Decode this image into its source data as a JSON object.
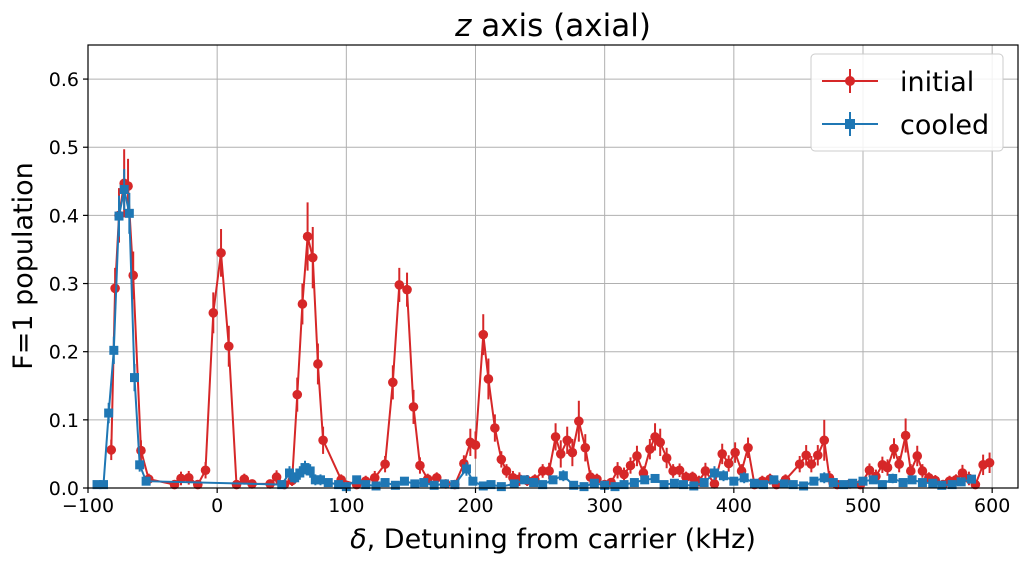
{
  "chart_data": {
    "type": "line",
    "title_italic": "z",
    "title_rest": " axis (axial)",
    "xlabel_symbol": "δ",
    "xlabel_rest": ", Detuning from carrier (kHz)",
    "ylabel": "F=1 population",
    "xlim": [
      -100,
      620
    ],
    "ylim": [
      0,
      0.65
    ],
    "xticks": [
      -100,
      0,
      100,
      200,
      300,
      400,
      500,
      600
    ],
    "xtick_labels": [
      "−100",
      "0",
      "100",
      "200",
      "300",
      "400",
      "500",
      "600"
    ],
    "yticks": [
      0,
      0.1,
      0.2,
      0.3,
      0.4,
      0.5,
      0.6
    ],
    "ytick_labels": [
      "0.0",
      "0.1",
      "0.2",
      "0.3",
      "0.4",
      "0.5",
      "0.6"
    ],
    "grid": true,
    "legend_position": "top-right",
    "series": [
      {
        "name": "initial",
        "color": "#d62728",
        "marker": "circle",
        "points": [
          [
            -82,
            0.056,
            0.015
          ],
          [
            -79,
            0.293,
            0.03
          ],
          [
            -76,
            0.4,
            0.04
          ],
          [
            -72,
            0.447,
            0.05
          ],
          [
            -69,
            0.443,
            0.04
          ],
          [
            -65,
            0.312,
            0.035
          ],
          [
            -59,
            0.055,
            0.015
          ],
          [
            -53,
            0.013,
            0.008
          ],
          [
            -33,
            0.005,
            0.005
          ],
          [
            -28,
            0.014,
            0.01
          ],
          [
            -22,
            0.015,
            0.01
          ],
          [
            -15,
            0.005,
            0.005
          ],
          [
            -9,
            0.026,
            0.012
          ],
          [
            -3,
            0.257,
            0.03
          ],
          [
            3,
            0.345,
            0.035
          ],
          [
            9,
            0.208,
            0.03
          ],
          [
            15,
            0.005,
            0.005
          ],
          [
            21,
            0.013,
            0.008
          ],
          [
            27,
            0.006,
            0.005
          ],
          [
            41,
            0.006,
            0.005
          ],
          [
            46,
            0.016,
            0.01
          ],
          [
            52,
            0.005,
            0.006
          ],
          [
            58,
            0.011,
            0.008
          ],
          [
            62,
            0.137,
            0.025
          ],
          [
            66,
            0.27,
            0.03
          ],
          [
            70,
            0.369,
            0.05
          ],
          [
            74,
            0.338,
            0.045
          ],
          [
            78,
            0.182,
            0.03
          ],
          [
            82,
            0.07,
            0.02
          ],
          [
            96,
            0.012,
            0.008
          ],
          [
            108,
            0.005,
            0.005
          ],
          [
            115,
            0.01,
            0.008
          ],
          [
            122,
            0.015,
            0.01
          ],
          [
            130,
            0.035,
            0.012
          ],
          [
            136,
            0.155,
            0.025
          ],
          [
            141,
            0.298,
            0.025
          ],
          [
            147,
            0.291,
            0.025
          ],
          [
            152,
            0.119,
            0.025
          ],
          [
            157,
            0.033,
            0.012
          ],
          [
            163,
            0.013,
            0.008
          ],
          [
            170,
            0.015,
            0.008
          ],
          [
            177,
            0.006,
            0.005
          ],
          [
            184,
            0.005,
            0.005
          ],
          [
            191,
            0.036,
            0.012
          ],
          [
            196,
            0.067,
            0.02
          ],
          [
            200,
            0.063,
            0.02
          ],
          [
            206,
            0.225,
            0.03
          ],
          [
            210,
            0.16,
            0.03
          ],
          [
            215,
            0.088,
            0.02
          ],
          [
            220,
            0.042,
            0.012
          ],
          [
            224,
            0.025,
            0.01
          ],
          [
            229,
            0.015,
            0.01
          ],
          [
            234,
            0.013,
            0.01
          ],
          [
            240,
            0.011,
            0.008
          ],
          [
            246,
            0.012,
            0.008
          ],
          [
            252,
            0.025,
            0.01
          ],
          [
            257,
            0.025,
            0.012
          ],
          [
            262,
            0.075,
            0.02
          ],
          [
            266,
            0.05,
            0.02
          ],
          [
            271,
            0.07,
            0.02
          ],
          [
            275,
            0.052,
            0.02
          ],
          [
            280,
            0.098,
            0.03
          ],
          [
            285,
            0.059,
            0.02
          ],
          [
            289,
            0.016,
            0.01
          ],
          [
            294,
            0.013,
            0.008
          ],
          [
            300,
            0.005,
            0.005
          ],
          [
            305,
            0.008,
            0.006
          ],
          [
            310,
            0.026,
            0.012
          ],
          [
            315,
            0.02,
            0.01
          ],
          [
            320,
            0.033,
            0.012
          ],
          [
            325,
            0.047,
            0.015
          ],
          [
            330,
            0.022,
            0.01
          ],
          [
            335,
            0.057,
            0.015
          ],
          [
            339,
            0.075,
            0.02
          ],
          [
            343,
            0.067,
            0.02
          ],
          [
            348,
            0.044,
            0.015
          ],
          [
            353,
            0.025,
            0.01
          ],
          [
            358,
            0.026,
            0.01
          ],
          [
            363,
            0.016,
            0.008
          ],
          [
            368,
            0.016,
            0.008
          ],
          [
            373,
            0.01,
            0.008
          ],
          [
            378,
            0.025,
            0.012
          ],
          [
            385,
            0.006,
            0.005
          ],
          [
            391,
            0.05,
            0.015
          ],
          [
            396,
            0.036,
            0.012
          ],
          [
            401,
            0.052,
            0.015
          ],
          [
            406,
            0.025,
            0.01
          ],
          [
            411,
            0.059,
            0.015
          ],
          [
            416,
            0.005,
            0.005
          ],
          [
            422,
            0.01,
            0.008
          ],
          [
            428,
            0.013,
            0.008
          ],
          [
            433,
            0.005,
            0.005
          ],
          [
            440,
            0.012,
            0.008
          ],
          [
            451,
            0.035,
            0.012
          ],
          [
            456,
            0.048,
            0.015
          ],
          [
            460,
            0.035,
            0.012
          ],
          [
            465,
            0.048,
            0.015
          ],
          [
            470,
            0.07,
            0.03
          ],
          [
            474,
            0.015,
            0.01
          ],
          [
            480,
            0.005,
            0.005
          ],
          [
            490,
            0.006,
            0.005
          ],
          [
            498,
            0.005,
            0.005
          ],
          [
            505,
            0.026,
            0.01
          ],
          [
            510,
            0.017,
            0.01
          ],
          [
            515,
            0.034,
            0.012
          ],
          [
            519,
            0.03,
            0.012
          ],
          [
            524,
            0.058,
            0.015
          ],
          [
            528,
            0.035,
            0.012
          ],
          [
            533,
            0.077,
            0.025
          ],
          [
            537,
            0.025,
            0.01
          ],
          [
            542,
            0.047,
            0.015
          ],
          [
            546,
            0.025,
            0.01
          ],
          [
            551,
            0.015,
            0.008
          ],
          [
            556,
            0.011,
            0.008
          ],
          [
            562,
            0.005,
            0.005
          ],
          [
            567,
            0.01,
            0.008
          ],
          [
            572,
            0.012,
            0.008
          ],
          [
            577,
            0.022,
            0.012
          ],
          [
            582,
            0.014,
            0.01
          ],
          [
            587,
            0.005,
            0.005
          ],
          [
            593,
            0.034,
            0.015
          ],
          [
            598,
            0.037,
            0.015
          ]
        ]
      },
      {
        "name": "cooled",
        "color": "#1f77b4",
        "marker": "square",
        "points": [
          [
            -93,
            0.005,
            0.004
          ],
          [
            -88,
            0.005,
            0.004
          ],
          [
            -84,
            0.11,
            0.015
          ],
          [
            -80,
            0.202,
            0.02
          ],
          [
            -76,
            0.399,
            0.03
          ],
          [
            -72,
            0.438,
            0.03
          ],
          [
            -68,
            0.403,
            0.03
          ],
          [
            -64,
            0.162,
            0.02
          ],
          [
            -60,
            0.034,
            0.01
          ],
          [
            -55,
            0.01,
            0.006
          ],
          [
            50,
            0.005,
            0.004
          ],
          [
            56,
            0.022,
            0.01
          ],
          [
            60,
            0.015,
            0.008
          ],
          [
            64,
            0.022,
            0.01
          ],
          [
            68,
            0.03,
            0.01
          ],
          [
            72,
            0.025,
            0.01
          ],
          [
            76,
            0.012,
            0.008
          ],
          [
            80,
            0.012,
            0.008
          ],
          [
            86,
            0.008,
            0.006
          ],
          [
            94,
            0.005,
            0.004
          ],
          [
            100,
            0.002,
            0.003
          ],
          [
            108,
            0.012,
            0.006
          ],
          [
            115,
            0.005,
            0.004
          ],
          [
            123,
            0.003,
            0.003
          ],
          [
            130,
            0.008,
            0.005
          ],
          [
            138,
            0.004,
            0.004
          ],
          [
            145,
            0.01,
            0.006
          ],
          [
            153,
            0.006,
            0.005
          ],
          [
            160,
            0.008,
            0.005
          ],
          [
            168,
            0.004,
            0.004
          ],
          [
            176,
            0.006,
            0.005
          ],
          [
            184,
            0.005,
            0.004
          ],
          [
            193,
            0.028,
            0.01
          ],
          [
            198,
            0.01,
            0.006
          ],
          [
            206,
            0.003,
            0.003
          ],
          [
            212,
            0.005,
            0.004
          ],
          [
            220,
            0.002,
            0.003
          ],
          [
            230,
            0.006,
            0.005
          ],
          [
            238,
            0.012,
            0.006
          ],
          [
            245,
            0.008,
            0.005
          ],
          [
            252,
            0.005,
            0.004
          ],
          [
            260,
            0.012,
            0.006
          ],
          [
            268,
            0.018,
            0.008
          ],
          [
            276,
            0.004,
            0.004
          ],
          [
            284,
            0.002,
            0.003
          ],
          [
            292,
            0.007,
            0.005
          ],
          [
            300,
            0.004,
            0.004
          ],
          [
            308,
            0.002,
            0.003
          ],
          [
            315,
            0.005,
            0.004
          ],
          [
            323,
            0.008,
            0.005
          ],
          [
            331,
            0.012,
            0.006
          ],
          [
            339,
            0.014,
            0.006
          ],
          [
            346,
            0.005,
            0.004
          ],
          [
            354,
            0.007,
            0.005
          ],
          [
            361,
            0.005,
            0.004
          ],
          [
            369,
            0.003,
            0.003
          ],
          [
            377,
            0.008,
            0.005
          ],
          [
            385,
            0.022,
            0.01
          ],
          [
            392,
            0.018,
            0.008
          ],
          [
            400,
            0.01,
            0.006
          ],
          [
            408,
            0.015,
            0.008
          ],
          [
            416,
            0.007,
            0.005
          ],
          [
            423,
            0.005,
            0.004
          ],
          [
            431,
            0.012,
            0.006
          ],
          [
            439,
            0.006,
            0.005
          ],
          [
            446,
            0.005,
            0.004
          ],
          [
            454,
            0.003,
            0.003
          ],
          [
            462,
            0.01,
            0.006
          ],
          [
            470,
            0.015,
            0.008
          ],
          [
            477,
            0.008,
            0.005
          ],
          [
            485,
            0.005,
            0.004
          ],
          [
            492,
            0.007,
            0.005
          ],
          [
            500,
            0.01,
            0.006
          ],
          [
            508,
            0.012,
            0.006
          ],
          [
            515,
            0.005,
            0.004
          ],
          [
            523,
            0.014,
            0.007
          ],
          [
            531,
            0.008,
            0.005
          ],
          [
            538,
            0.012,
            0.006
          ],
          [
            546,
            0.008,
            0.005
          ],
          [
            554,
            0.007,
            0.005
          ],
          [
            561,
            0.004,
            0.004
          ],
          [
            569,
            0.005,
            0.004
          ],
          [
            576,
            0.009,
            0.005
          ],
          [
            584,
            0.013,
            0.006
          ]
        ]
      }
    ]
  }
}
